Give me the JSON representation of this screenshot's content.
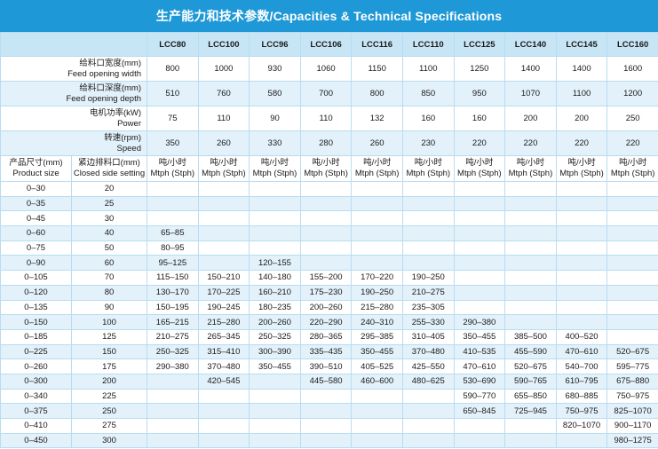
{
  "header": {
    "title": "生产能力和技术参数/Capacities & Technical Specifications"
  },
  "table": {
    "models": [
      "LCC80",
      "LCC100",
      "LCC96",
      "LCC106",
      "LCC116",
      "LCC110",
      "LCC125",
      "LCC140",
      "LCC145",
      "LCC160"
    ],
    "specs": [
      {
        "zh": "给料口宽度(mm)",
        "en": "Feed opening width",
        "values": [
          800,
          1000,
          930,
          1060,
          1150,
          1100,
          1250,
          1400,
          1400,
          1600
        ]
      },
      {
        "zh": "给料口深度(mm)",
        "en": "Feed opening depth",
        "values": [
          510,
          760,
          580,
          700,
          800,
          850,
          950,
          1070,
          1100,
          1200
        ]
      },
      {
        "zh": "电机功率(kW)",
        "en": "Power",
        "values": [
          75,
          110,
          90,
          110,
          132,
          160,
          160,
          200,
          200,
          250
        ]
      },
      {
        "zh": "转速(rpm)",
        "en": "Speed",
        "values": [
          350,
          260,
          330,
          280,
          260,
          230,
          220,
          220,
          220,
          220
        ]
      }
    ],
    "size_header": {
      "zh": "产品尺寸(mm)",
      "en": "Product size"
    },
    "setting_header": {
      "zh": "紧边排料口(mm)",
      "en": "Closed side setting"
    },
    "units": [
      {
        "zh": "吨/小时",
        "en": "Mtph (Stph)"
      },
      {
        "zh": "吨/小时",
        "en": "Mtph (Stph)"
      },
      {
        "zh": "吨/小时",
        "en": "Mtph (Stph)"
      },
      {
        "zh": "吨/小时",
        "en": "Mtph (Stph)"
      },
      {
        "zh": "吨/小时",
        "en": "Mtph (Stph)"
      },
      {
        "zh": "吨/小时",
        "en": "Mtph (Stph)"
      },
      {
        "zh": "吨/小时",
        "en": "Mtph (Stph)"
      },
      {
        "zh": "吨/小时",
        "en": "Mtph (Stph)"
      },
      {
        "zh": "吨/小时",
        "en": "Mtph (Stph)"
      },
      {
        "zh": "吨/小时",
        "en": "Mtph (Stph)"
      }
    ],
    "rows": [
      {
        "size": "0–30",
        "setting": 20,
        "cells": [
          null,
          null,
          null,
          null,
          null,
          null,
          null,
          null,
          null,
          null
        ]
      },
      {
        "size": "0–35",
        "setting": 25,
        "cells": [
          null,
          null,
          null,
          null,
          null,
          null,
          null,
          null,
          null,
          null
        ]
      },
      {
        "size": "0–45",
        "setting": 30,
        "cells": [
          null,
          null,
          null,
          null,
          null,
          null,
          null,
          null,
          null,
          null
        ]
      },
      {
        "size": "0–60",
        "setting": 40,
        "cells": [
          "65–85",
          null,
          null,
          null,
          null,
          null,
          null,
          null,
          null,
          null
        ]
      },
      {
        "size": "0–75",
        "setting": 50,
        "cells": [
          "80–95",
          null,
          null,
          null,
          null,
          null,
          null,
          null,
          null,
          null
        ]
      },
      {
        "size": "0–90",
        "setting": 60,
        "cells": [
          "95–125",
          null,
          "120–155",
          null,
          null,
          null,
          null,
          null,
          null,
          null
        ]
      },
      {
        "size": "0–105",
        "setting": 70,
        "cells": [
          "115–150",
          "150–210",
          "140–180",
          "155–200",
          "170–220",
          "190–250",
          null,
          null,
          null,
          null
        ]
      },
      {
        "size": "0–120",
        "setting": 80,
        "cells": [
          "130–170",
          "170–225",
          "160–210",
          "175–230",
          "190–250",
          "210–275",
          null,
          null,
          null,
          null
        ]
      },
      {
        "size": "0–135",
        "setting": 90,
        "cells": [
          "150–195",
          "190–245",
          "180–235",
          "200–260",
          "215–280",
          "235–305",
          null,
          null,
          null,
          null
        ]
      },
      {
        "size": "0–150",
        "setting": 100,
        "cells": [
          "165–215",
          "215–280",
          "200–260",
          "220–290",
          "240–310",
          "255–330",
          "290–380",
          null,
          null,
          null
        ]
      },
      {
        "size": "0–185",
        "setting": 125,
        "cells": [
          "210–275",
          "265–345",
          "250–325",
          "280–365",
          "295–385",
          "310–405",
          "350–455",
          "385–500",
          "400–520",
          null
        ]
      },
      {
        "size": "0–225",
        "setting": 150,
        "cells": [
          "250–325",
          "315–410",
          "300–390",
          "335–435",
          "350–455",
          "370–480",
          "410–535",
          "455–590",
          "470–610",
          "520–675"
        ]
      },
      {
        "size": "0–260",
        "setting": 175,
        "cells": [
          "290–380",
          "370–480",
          "350–455",
          "390–510",
          "405–525",
          "425–550",
          "470–610",
          "520–675",
          "540–700",
          "595–775"
        ]
      },
      {
        "size": "0–300",
        "setting": 200,
        "cells": [
          null,
          "420–545",
          null,
          "445–580",
          "460–600",
          "480–625",
          "530–690",
          "590–765",
          "610–795",
          "675–880"
        ]
      },
      {
        "size": "0–340",
        "setting": 225,
        "cells": [
          null,
          null,
          null,
          null,
          null,
          null,
          "590–770",
          "655–850",
          "680–885",
          "750–975"
        ]
      },
      {
        "size": "0–375",
        "setting": 250,
        "cells": [
          null,
          null,
          null,
          null,
          null,
          null,
          "650–845",
          "725–945",
          "750–975",
          "825–1070"
        ]
      },
      {
        "size": "0–410",
        "setting": 275,
        "cells": [
          null,
          null,
          null,
          null,
          null,
          null,
          null,
          null,
          "820–1070",
          "900–1170"
        ]
      },
      {
        "size": "0–450",
        "setting": 300,
        "cells": [
          null,
          null,
          null,
          null,
          null,
          null,
          null,
          null,
          null,
          "980–1275"
        ]
      }
    ]
  }
}
